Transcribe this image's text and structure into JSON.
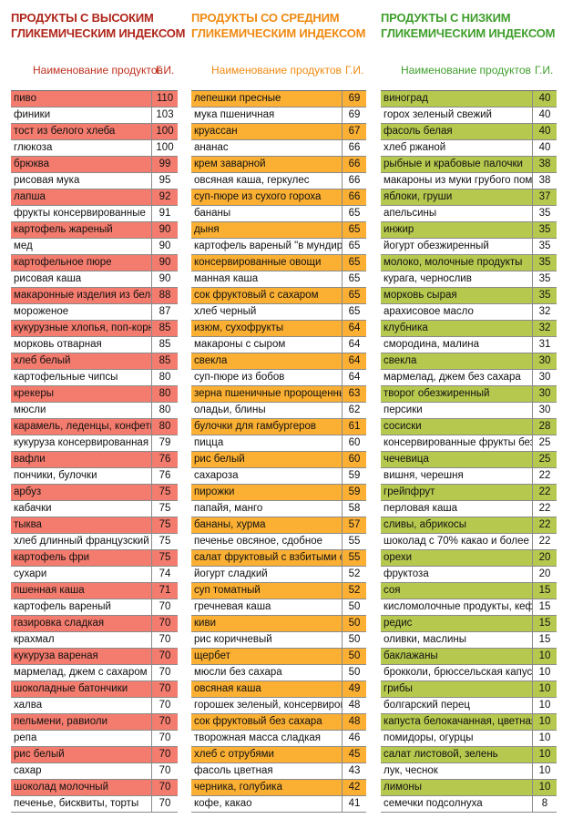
{
  "columns": [
    {
      "title_line1": "ПРОДУКТЫ С ВЫСОКИМ",
      "title_line2": "ГЛИКЕМИЧЕСКИМ ИНДЕКСОМ",
      "header_name": "Наименование продуктов",
      "header_gi": "Г.И.",
      "title_color": "#b0261b",
      "header_color": "#c0301f",
      "rows": [
        {
          "name": "пиво",
          "gi": "110",
          "hl": true
        },
        {
          "name": "финики",
          "gi": "103",
          "hl": false
        },
        {
          "name": "тост из белого хлеба",
          "gi": "100",
          "hl": true
        },
        {
          "name": "глюкоза",
          "gi": "100",
          "hl": false
        },
        {
          "name": "брюква",
          "gi": "99",
          "hl": true
        },
        {
          "name": "рисовая мука",
          "gi": "95",
          "hl": false
        },
        {
          "name": "лапша",
          "gi": "92",
          "hl": true
        },
        {
          "name": "фрукты консервированные",
          "gi": "91",
          "hl": false
        },
        {
          "name": "картофель жареный",
          "gi": "90",
          "hl": true
        },
        {
          "name": "мед",
          "gi": "90",
          "hl": false
        },
        {
          "name": "картофельное пюре",
          "gi": "90",
          "hl": true
        },
        {
          "name": "рисовая каша",
          "gi": "90",
          "hl": false
        },
        {
          "name": "макаронные изделия из белой му",
          "gi": "88",
          "hl": true
        },
        {
          "name": "мороженое",
          "gi": "87",
          "hl": false
        },
        {
          "name": "кукурузные хлопья, поп-корн",
          "gi": "85",
          "hl": true
        },
        {
          "name": "морковь отварная",
          "gi": "85",
          "hl": false
        },
        {
          "name": "хлеб белый",
          "gi": "85",
          "hl": true
        },
        {
          "name": "картофельные чипсы",
          "gi": "80",
          "hl": false
        },
        {
          "name": "крекеры",
          "gi": "80",
          "hl": true
        },
        {
          "name": "мюсли",
          "gi": "80",
          "hl": false
        },
        {
          "name": "карамель, леденцы, конфеты",
          "gi": "80",
          "hl": true
        },
        {
          "name": "кукуруза консервированная",
          "gi": "79",
          "hl": false
        },
        {
          "name": "вафли",
          "gi": "76",
          "hl": true
        },
        {
          "name": "пончики, булочки",
          "gi": "76",
          "hl": false
        },
        {
          "name": "арбуз",
          "gi": "75",
          "hl": true
        },
        {
          "name": "кабачки",
          "gi": "75",
          "hl": false
        },
        {
          "name": "тыква",
          "gi": "75",
          "hl": true
        },
        {
          "name": "хлеб длинный французский",
          "gi": "75",
          "hl": false
        },
        {
          "name": "картофель фри",
          "gi": "75",
          "hl": true
        },
        {
          "name": "сухари",
          "gi": "74",
          "hl": false
        },
        {
          "name": "пшенная каша",
          "gi": "71",
          "hl": true
        },
        {
          "name": "картофель вареный",
          "gi": "70",
          "hl": false
        },
        {
          "name": "газировка сладкая",
          "gi": "70",
          "hl": true
        },
        {
          "name": "крахмал",
          "gi": "70",
          "hl": false
        },
        {
          "name": "кукуруза вареная",
          "gi": "70",
          "hl": true
        },
        {
          "name": "мармелад, джем с сахаром",
          "gi": "70",
          "hl": false
        },
        {
          "name": "шоколадные батончики",
          "gi": "70",
          "hl": true
        },
        {
          "name": "халва",
          "gi": "70",
          "hl": false
        },
        {
          "name": "пельмени, равиоли",
          "gi": "70",
          "hl": true
        },
        {
          "name": "репа",
          "gi": "70",
          "hl": false
        },
        {
          "name": "рис белый",
          "gi": "70",
          "hl": true
        },
        {
          "name": "сахар",
          "gi": "70",
          "hl": false
        },
        {
          "name": "шоколад молочный",
          "gi": "70",
          "hl": true
        },
        {
          "name": "печенье, бисквиты, торты",
          "gi": "70",
          "hl": false
        }
      ]
    },
    {
      "title_line1": "ПРОДУКТЫ СО СРЕДНИМ",
      "title_line2": "ГЛИКЕМИЧЕСКИМ ИНДЕКСОМ",
      "header_name": "Наименование продуктов",
      "header_gi": "Г.И.",
      "title_color": "#f08a12",
      "header_color": "#f08a12",
      "rows": [
        {
          "name": "лепешки пресные",
          "gi": "69",
          "hl": true
        },
        {
          "name": "мука пшеничная",
          "gi": "69",
          "hl": false
        },
        {
          "name": "круассан",
          "gi": "67",
          "hl": true
        },
        {
          "name": "ананас",
          "gi": "66",
          "hl": false
        },
        {
          "name": "крем заварной",
          "gi": "66",
          "hl": true
        },
        {
          "name": "овсяная каша, геркулес",
          "gi": "66",
          "hl": false
        },
        {
          "name": "суп-пюре из сухого гороха",
          "gi": "66",
          "hl": true
        },
        {
          "name": "бананы",
          "gi": "65",
          "hl": false
        },
        {
          "name": "дыня",
          "gi": "65",
          "hl": true
        },
        {
          "name": "картофель вареный \"в мундире\"",
          "gi": "65",
          "hl": false
        },
        {
          "name": "консервированные овощи",
          "gi": "65",
          "hl": true
        },
        {
          "name": "манная каша",
          "gi": "65",
          "hl": false
        },
        {
          "name": "сок фруктовый с сахаром",
          "gi": "65",
          "hl": true
        },
        {
          "name": "хлеб черный",
          "gi": "65",
          "hl": false
        },
        {
          "name": "изюм, сухофрукты",
          "gi": "64",
          "hl": true
        },
        {
          "name": "макароны с сыром",
          "gi": "64",
          "hl": false
        },
        {
          "name": "свекла",
          "gi": "64",
          "hl": true
        },
        {
          "name": "суп-пюре из бобов",
          "gi": "64",
          "hl": false
        },
        {
          "name": "зерна пшеничные пророщенные",
          "gi": "63",
          "hl": true
        },
        {
          "name": "оладьи, блины",
          "gi": "62",
          "hl": false
        },
        {
          "name": "булочки для гамбургеров",
          "gi": "61",
          "hl": true
        },
        {
          "name": "пицца",
          "gi": "60",
          "hl": false
        },
        {
          "name": "рис белый",
          "gi": "60",
          "hl": true
        },
        {
          "name": "сахароза",
          "gi": "59",
          "hl": false
        },
        {
          "name": "пирожки",
          "gi": "59",
          "hl": true
        },
        {
          "name": "папайя, манго",
          "gi": "58",
          "hl": false
        },
        {
          "name": "бананы, хурма",
          "gi": "57",
          "hl": true
        },
        {
          "name": "печенье овсяное, сдобное",
          "gi": "55",
          "hl": false
        },
        {
          "name": "салат фруктовый с взбитыми сливками",
          "gi": "55",
          "hl": true
        },
        {
          "name": "йогурт сладкий",
          "gi": "52",
          "hl": false
        },
        {
          "name": "суп томатный",
          "gi": "52",
          "hl": true
        },
        {
          "name": "гречневая каша",
          "gi": "50",
          "hl": false
        },
        {
          "name": "киви",
          "gi": "50",
          "hl": true
        },
        {
          "name": "рис коричневый",
          "gi": "50",
          "hl": false
        },
        {
          "name": "щербет",
          "gi": "50",
          "hl": true
        },
        {
          "name": "мюсли без сахара",
          "gi": "50",
          "hl": false
        },
        {
          "name": "овсяная каша",
          "gi": "49",
          "hl": true
        },
        {
          "name": "горошек зеленый, консервированный",
          "gi": "48",
          "hl": false
        },
        {
          "name": "сок фруктовый без сахара",
          "gi": "48",
          "hl": true
        },
        {
          "name": "творожная масса сладкая",
          "gi": "46",
          "hl": false
        },
        {
          "name": "хлеб с отрубями",
          "gi": "45",
          "hl": true
        },
        {
          "name": "фасоль цветная",
          "gi": "43",
          "hl": false
        },
        {
          "name": "черника, голубика",
          "gi": "42",
          "hl": true
        },
        {
          "name": "кофе, какао",
          "gi": "41",
          "hl": false
        }
      ]
    },
    {
      "title_line1": "ПРОДУКТЫ С НИЗКИМ",
      "title_line2": "ГЛИКЕМИЧЕСКИМ ИНДЕКСОМ",
      "header_name": "Наименование продуктов",
      "header_gi": "Г.И.",
      "title_color": "#3f9f2c",
      "header_color": "#3f9f2c",
      "rows": [
        {
          "name": "виноград",
          "gi": "40",
          "hl": true
        },
        {
          "name": "горох зеленый свежий",
          "gi": "40",
          "hl": false
        },
        {
          "name": "фасоль белая",
          "gi": "40",
          "hl": true
        },
        {
          "name": "хлеб ржаной",
          "gi": "40",
          "hl": false
        },
        {
          "name": "рыбные и крабовые палочки",
          "gi": "38",
          "hl": true
        },
        {
          "name": "макароны из муки грубого помола",
          "gi": "38",
          "hl": false
        },
        {
          "name": "яблоки, груши",
          "gi": "37",
          "hl": true
        },
        {
          "name": "апельсины",
          "gi": "35",
          "hl": false
        },
        {
          "name": "инжир",
          "gi": "35",
          "hl": true
        },
        {
          "name": "йогурт обезжиренный",
          "gi": "35",
          "hl": false
        },
        {
          "name": "молоко, молочные продукты",
          "gi": "35",
          "hl": true
        },
        {
          "name": "курага, чернослив",
          "gi": "35",
          "hl": false
        },
        {
          "name": "морковь сырая",
          "gi": "35",
          "hl": true
        },
        {
          "name": "арахисовое масло",
          "gi": "32",
          "hl": false
        },
        {
          "name": "клубника",
          "gi": "32",
          "hl": true
        },
        {
          "name": "смородина, малина",
          "gi": "31",
          "hl": false
        },
        {
          "name": "свекла",
          "gi": "30",
          "hl": true
        },
        {
          "name": "мармелад, джем без сахара",
          "gi": "30",
          "hl": false
        },
        {
          "name": "творог обезжиренный",
          "gi": "30",
          "hl": true
        },
        {
          "name": "персики",
          "gi": "30",
          "hl": false
        },
        {
          "name": "сосиски",
          "gi": "28",
          "hl": true
        },
        {
          "name": "консервированные фрукты без сахара",
          "gi": "25",
          "hl": false
        },
        {
          "name": "чечевица",
          "gi": "25",
          "hl": true
        },
        {
          "name": "вишня, черешня",
          "gi": "22",
          "hl": false
        },
        {
          "name": "грейпфрут",
          "gi": "22",
          "hl": true
        },
        {
          "name": "перловая каша",
          "gi": "22",
          "hl": false
        },
        {
          "name": "сливы, абрикосы",
          "gi": "22",
          "hl": true
        },
        {
          "name": "шоколад с 70% какао и более",
          "gi": "22",
          "hl": false
        },
        {
          "name": "орехи",
          "gi": "20",
          "hl": true
        },
        {
          "name": "фруктоза",
          "gi": "20",
          "hl": false
        },
        {
          "name": "соя",
          "gi": "15",
          "hl": true
        },
        {
          "name": "кисломолочные продукты, кефир",
          "gi": "15",
          "hl": false
        },
        {
          "name": "редис",
          "gi": "15",
          "hl": true
        },
        {
          "name": "оливки, маслины",
          "gi": "15",
          "hl": false
        },
        {
          "name": "баклажаны",
          "gi": "10",
          "hl": true
        },
        {
          "name": "брокколи, брюссельская капуста",
          "gi": "10",
          "hl": false
        },
        {
          "name": "грибы",
          "gi": "10",
          "hl": true
        },
        {
          "name": "болгарский перец",
          "gi": "10",
          "hl": false
        },
        {
          "name": "капуста белокачанная, цветная",
          "gi": "10",
          "hl": true
        },
        {
          "name": "помидоры, огурцы",
          "gi": "10",
          "hl": false
        },
        {
          "name": "салат листовой, зелень",
          "gi": "10",
          "hl": true
        },
        {
          "name": "лук, чеснок",
          "gi": "10",
          "hl": false
        },
        {
          "name": "лимоны",
          "gi": "10",
          "hl": true
        },
        {
          "name": "семечки подсолнуха",
          "gi": "8",
          "hl": false
        }
      ]
    }
  ]
}
